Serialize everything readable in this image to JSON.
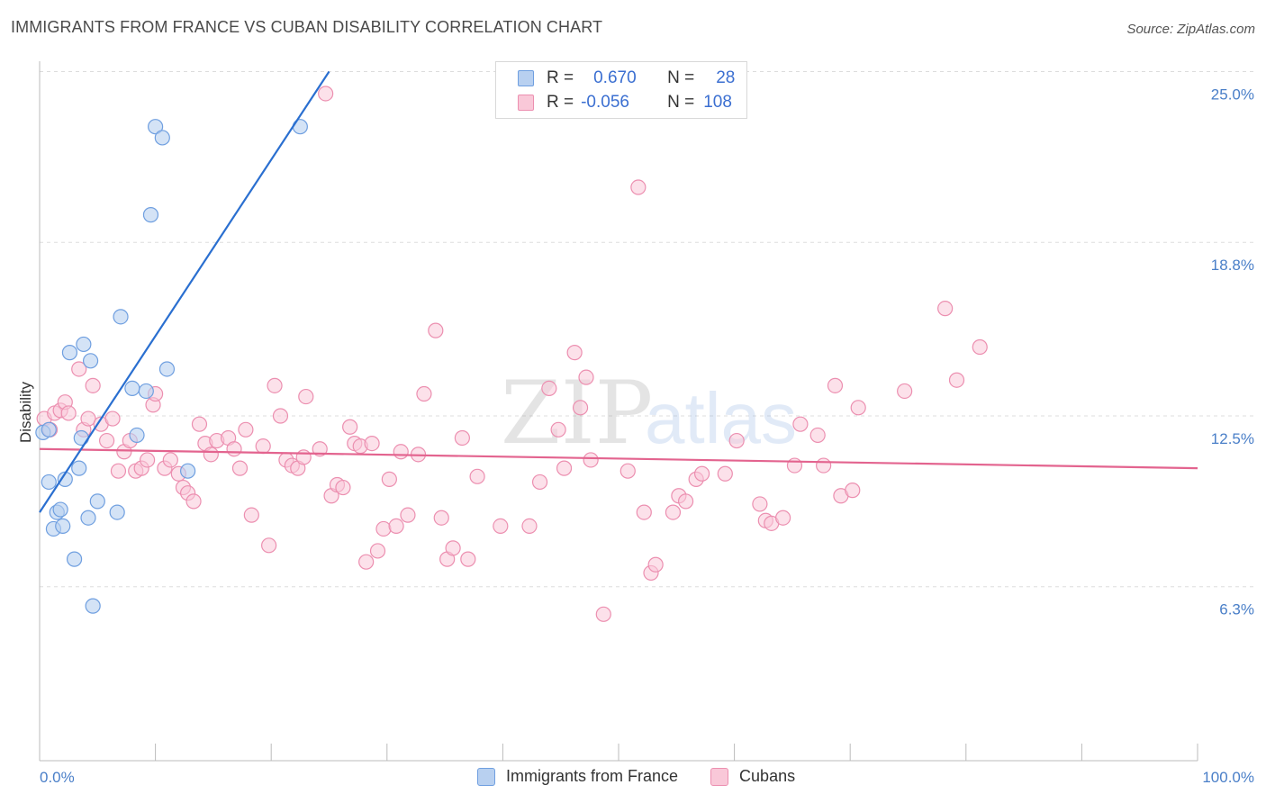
{
  "title": "IMMIGRANTS FROM FRANCE VS CUBAN DISABILITY CORRELATION CHART",
  "source": "Source: ZipAtlas.com",
  "watermark": {
    "zip": "ZIP",
    "atlas": "atlas"
  },
  "colors": {
    "blue_fill": "#b8d0f0",
    "blue_stroke": "#6f9fe0",
    "blue_line": "#2a6fd0",
    "pink_fill": "#f9c8d8",
    "pink_stroke": "#ec8fb0",
    "pink_line": "#e3648f",
    "axis_text": "#4a7fc8",
    "grid": "#dddddd"
  },
  "legend": {
    "rows": [
      {
        "r_label": "R =",
        "r_value": "0.670",
        "n_label": "N =",
        "n_value": "28"
      },
      {
        "r_label": "R =",
        "r_value": "-0.056",
        "n_label": "N =",
        "n_value": "108"
      }
    ]
  },
  "bottom_legend": {
    "series1": "Immigrants from France",
    "series2": "Cubans"
  },
  "chart_data": {
    "type": "scatter",
    "title": "IMMIGRANTS FROM FRANCE VS CUBAN DISABILITY CORRELATION CHART",
    "xlabel": "",
    "ylabel": "Disability",
    "xlim": [
      0,
      100
    ],
    "ylim": [
      0,
      26
    ],
    "x_tick_labels": {
      "min": "0.0%",
      "max": "100.0%"
    },
    "y_ticks": [
      {
        "value": 6.3,
        "label": "6.3%"
      },
      {
        "value": 12.5,
        "label": "12.5%"
      },
      {
        "value": 18.8,
        "label": "18.8%"
      },
      {
        "value": 25.0,
        "label": "25.0%"
      }
    ],
    "series": [
      {
        "name": "Immigrants from France",
        "R": 0.67,
        "N": 28,
        "trend": {
          "x": [
            0,
            25
          ],
          "y": [
            9.0,
            25.0
          ]
        },
        "points": [
          [
            0.3,
            11.9
          ],
          [
            0.8,
            10.1
          ],
          [
            1.2,
            8.4
          ],
          [
            1.5,
            9.0
          ],
          [
            1.8,
            9.1
          ],
          [
            2.0,
            8.5
          ],
          [
            2.2,
            10.2
          ],
          [
            2.6,
            14.8
          ],
          [
            3.0,
            7.3
          ],
          [
            3.4,
            10.6
          ],
          [
            3.6,
            11.7
          ],
          [
            3.8,
            15.1
          ],
          [
            4.2,
            8.8
          ],
          [
            4.4,
            14.5
          ],
          [
            5.0,
            9.4
          ],
          [
            6.7,
            9.0
          ],
          [
            7.0,
            16.1
          ],
          [
            8.0,
            13.5
          ],
          [
            8.4,
            11.8
          ],
          [
            9.2,
            13.4
          ],
          [
            9.6,
            19.8
          ],
          [
            10.0,
            23.0
          ],
          [
            10.6,
            22.6
          ],
          [
            11.0,
            14.2
          ],
          [
            12.8,
            10.5
          ],
          [
            22.5,
            23.0
          ],
          [
            4.6,
            5.6
          ],
          [
            0.8,
            12.0
          ]
        ]
      },
      {
        "name": "Cubans",
        "R": -0.056,
        "N": 108,
        "trend": {
          "x": [
            0,
            100
          ],
          "y": [
            11.3,
            10.6
          ]
        },
        "points": [
          [
            0.4,
            12.4
          ],
          [
            0.9,
            12.0
          ],
          [
            1.3,
            12.6
          ],
          [
            1.8,
            12.7
          ],
          [
            2.2,
            13.0
          ],
          [
            2.5,
            12.6
          ],
          [
            3.4,
            14.2
          ],
          [
            3.8,
            12.0
          ],
          [
            4.2,
            12.4
          ],
          [
            4.6,
            13.6
          ],
          [
            5.3,
            12.2
          ],
          [
            5.8,
            11.6
          ],
          [
            6.3,
            12.4
          ],
          [
            6.8,
            10.5
          ],
          [
            7.3,
            11.2
          ],
          [
            7.8,
            11.6
          ],
          [
            8.3,
            10.5
          ],
          [
            8.8,
            10.6
          ],
          [
            9.3,
            10.9
          ],
          [
            9.8,
            12.9
          ],
          [
            10.0,
            13.3
          ],
          [
            10.8,
            10.6
          ],
          [
            11.3,
            10.9
          ],
          [
            12.0,
            10.4
          ],
          [
            12.4,
            9.9
          ],
          [
            12.8,
            9.7
          ],
          [
            13.3,
            9.4
          ],
          [
            13.8,
            12.2
          ],
          [
            14.3,
            11.5
          ],
          [
            14.8,
            11.1
          ],
          [
            15.3,
            11.6
          ],
          [
            16.3,
            11.7
          ],
          [
            16.8,
            11.3
          ],
          [
            17.3,
            10.6
          ],
          [
            17.8,
            12.0
          ],
          [
            18.3,
            8.9
          ],
          [
            19.3,
            11.4
          ],
          [
            19.8,
            7.8
          ],
          [
            20.3,
            13.6
          ],
          [
            20.8,
            12.5
          ],
          [
            21.3,
            10.9
          ],
          [
            21.8,
            10.7
          ],
          [
            22.3,
            10.6
          ],
          [
            22.8,
            11.0
          ],
          [
            23.0,
            13.2
          ],
          [
            24.2,
            11.3
          ],
          [
            24.7,
            24.2
          ],
          [
            25.2,
            9.6
          ],
          [
            25.7,
            10.0
          ],
          [
            26.2,
            9.9
          ],
          [
            26.8,
            12.1
          ],
          [
            27.2,
            11.5
          ],
          [
            27.7,
            11.4
          ],
          [
            28.2,
            7.2
          ],
          [
            28.7,
            11.5
          ],
          [
            29.2,
            7.6
          ],
          [
            29.7,
            8.4
          ],
          [
            30.2,
            10.2
          ],
          [
            30.8,
            8.5
          ],
          [
            31.2,
            11.2
          ],
          [
            31.8,
            8.9
          ],
          [
            32.7,
            11.1
          ],
          [
            33.2,
            13.3
          ],
          [
            34.2,
            15.6
          ],
          [
            34.7,
            8.8
          ],
          [
            35.2,
            7.3
          ],
          [
            35.7,
            7.7
          ],
          [
            36.5,
            11.7
          ],
          [
            37.0,
            7.3
          ],
          [
            37.8,
            10.3
          ],
          [
            39.8,
            8.5
          ],
          [
            42.3,
            8.5
          ],
          [
            43.2,
            10.1
          ],
          [
            44.0,
            13.5
          ],
          [
            44.8,
            12.0
          ],
          [
            45.3,
            10.6
          ],
          [
            46.2,
            14.8
          ],
          [
            46.7,
            12.8
          ],
          [
            47.2,
            13.9
          ],
          [
            47.6,
            10.9
          ],
          [
            48.7,
            5.3
          ],
          [
            50.8,
            10.5
          ],
          [
            51.7,
            20.8
          ],
          [
            52.2,
            9.0
          ],
          [
            52.8,
            6.8
          ],
          [
            53.2,
            7.1
          ],
          [
            54.7,
            9.0
          ],
          [
            55.2,
            9.6
          ],
          [
            55.8,
            9.4
          ],
          [
            56.7,
            10.2
          ],
          [
            57.2,
            10.4
          ],
          [
            59.2,
            10.4
          ],
          [
            60.2,
            11.6
          ],
          [
            62.2,
            9.3
          ],
          [
            62.7,
            8.7
          ],
          [
            63.2,
            8.6
          ],
          [
            64.2,
            8.8
          ],
          [
            65.2,
            10.7
          ],
          [
            65.7,
            12.2
          ],
          [
            67.2,
            11.8
          ],
          [
            67.7,
            10.7
          ],
          [
            68.7,
            13.6
          ],
          [
            69.2,
            9.6
          ],
          [
            70.2,
            9.8
          ],
          [
            70.7,
            12.8
          ],
          [
            74.7,
            13.4
          ],
          [
            78.2,
            16.4
          ],
          [
            79.2,
            13.8
          ],
          [
            81.2,
            15.0
          ]
        ]
      }
    ]
  }
}
